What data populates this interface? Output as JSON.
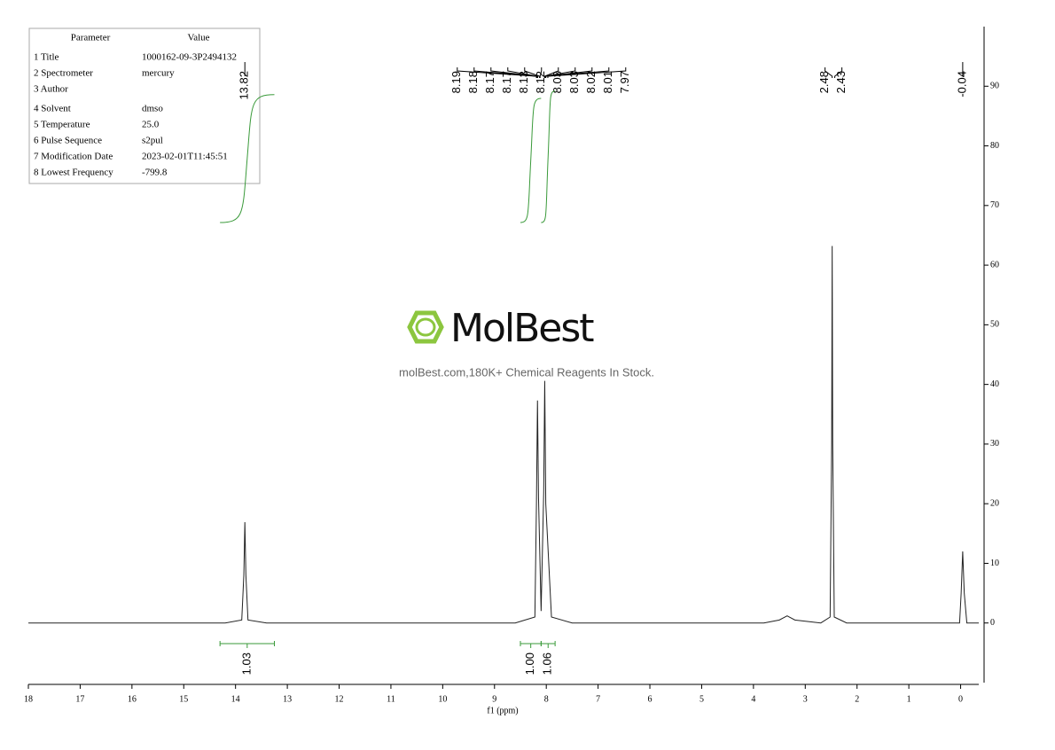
{
  "chart_data": {
    "type": "line",
    "xlabel": "f1 (ppm)",
    "x": [
      18,
      14.2,
      13.88,
      13.84,
      13.82,
      13.8,
      13.76,
      13.4,
      8.6,
      8.22,
      8.19,
      8.17,
      8.15,
      8.1,
      8.05,
      8.03,
      8.01,
      7.9,
      7.5,
      3.8,
      3.5,
      3.35,
      3.2,
      2.7,
      2.52,
      2.49,
      2.48,
      2.47,
      2.44,
      2.2,
      0.1,
      0.02,
      -0.01,
      -0.04,
      -0.07,
      -0.12,
      -0.35
    ],
    "values": [
      0,
      0,
      0.5,
      8,
      16.9,
      8,
      0.5,
      0,
      0,
      1,
      20,
      37.3,
      21,
      2,
      22,
      40.6,
      20,
      1,
      0,
      0,
      0.5,
      1.2,
      0.5,
      0,
      1,
      30,
      63.2,
      30,
      1,
      0,
      0,
      0,
      5,
      12,
      5,
      0,
      0
    ],
    "color": "#222222",
    "xlim": [
      18,
      -0.35
    ],
    "xticks": [
      18,
      17,
      16,
      15,
      14,
      13,
      12,
      11,
      10,
      9,
      8,
      7,
      6,
      5,
      4,
      3,
      2,
      1,
      0
    ],
    "ylim": [
      -10,
      100
    ],
    "yticks": [
      0,
      10,
      20,
      30,
      40,
      50,
      60,
      70,
      80,
      90
    ],
    "peak_labels": [
      [
        13.82
      ],
      [
        8.19,
        8.18,
        8.17,
        8.17,
        8.13,
        8.12,
        8.03,
        8.03,
        8.02,
        8.01,
        7.97
      ],
      [
        2.48,
        2.43
      ],
      [
        -0.04
      ]
    ],
    "integrals": {
      "ranges": [
        [
          14.3,
          13.25
        ],
        [
          8.5,
          8.1
        ],
        [
          8.1,
          7.83
        ]
      ],
      "values": [
        1.03,
        1.0,
        1.06
      ],
      "value_labels": [
        "1.03",
        "1.00",
        "1.06"
      ],
      "color": "#3a9a3a"
    }
  },
  "parameters": {
    "header": [
      "Parameter",
      "Value"
    ],
    "rows": [
      [
        "1 Title",
        "1000162-09-3P2494132"
      ],
      [
        "2 Spectrometer",
        "mercury"
      ],
      [
        "3 Author",
        ""
      ],
      [
        "4 Solvent",
        "dmso"
      ],
      [
        "5 Temperature",
        "25.0"
      ],
      [
        "6 Pulse Sequence",
        "s2pul"
      ],
      [
        "7 Modification Date",
        "2023-02-01T11:45:51"
      ],
      [
        "8 Lowest Frequency",
        "-799.8"
      ]
    ]
  },
  "watermark": {
    "brand": "MolBest",
    "tagline": "molBest.com,180K+ Chemical Reagents In Stock."
  }
}
